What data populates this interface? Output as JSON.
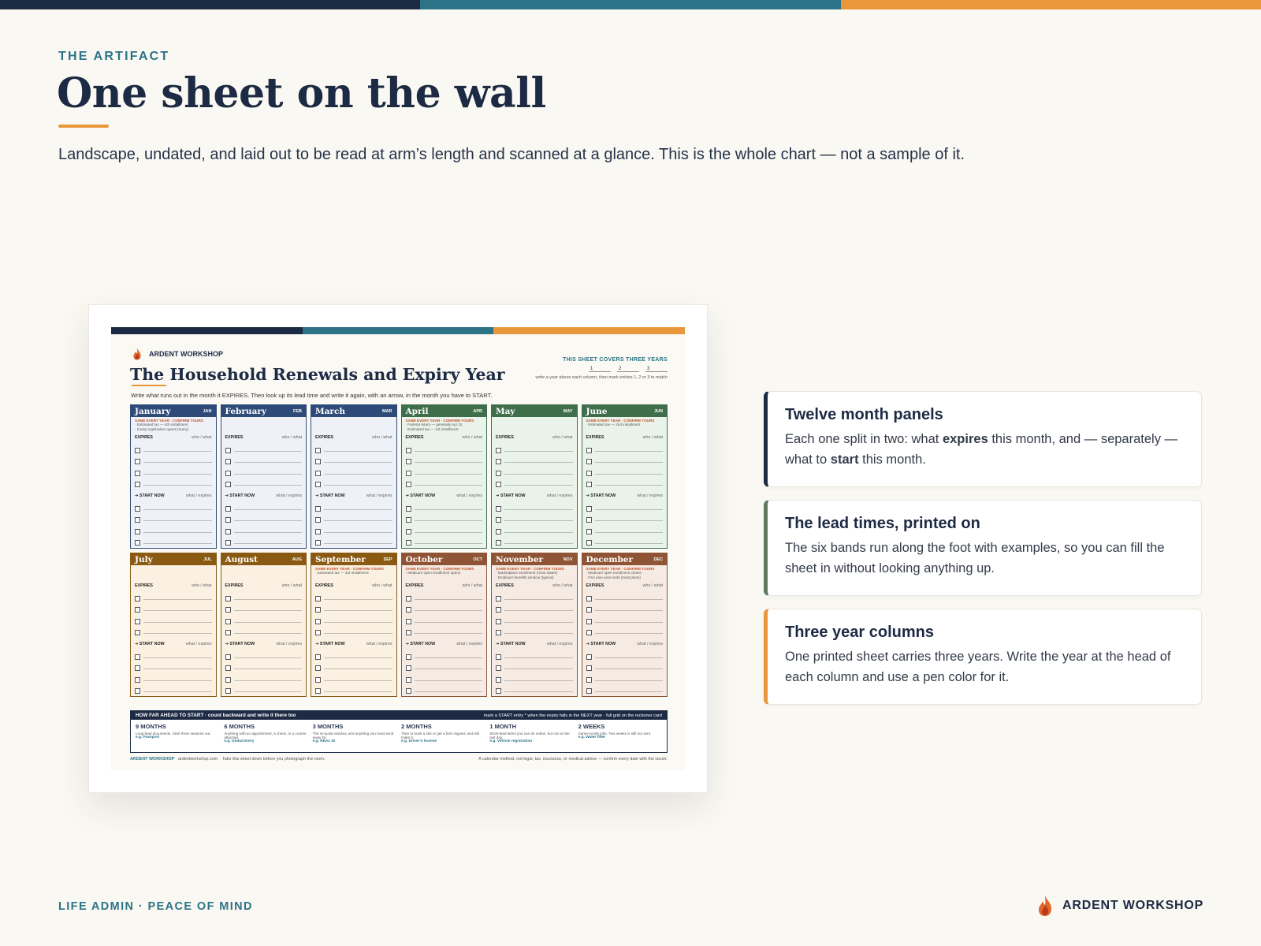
{
  "colors": {
    "navy": "#1d2a44",
    "teal": "#2c7388",
    "orange": "#e9973a",
    "green": "#5d7a5d"
  },
  "header": {
    "eyebrow": "THE ARTIFACT",
    "title": "One sheet on the wall",
    "lede": "Landscape, undated, and laid out to be read at arm’s length and scanned at a glance. This is the whole chart — not a sample of it."
  },
  "sheet": {
    "brand": "ARDENT WORKSHOP",
    "title": "The Household Renewals and Expiry Year",
    "instruction": "Write what runs out in the month it EXPIRES. Then look up its lead time and write it again, with an arrow, in the month you have to START.",
    "covers_label": "THIS SHEET COVERS THREE YEARS",
    "years": [
      "1",
      "2",
      "3"
    ],
    "covers_note": "write a year above each column, then mark entries 1, 2 or 3 to match",
    "expires_label": "EXPIRES",
    "expires_hint": "who / what",
    "start_label": "➔ START NOW",
    "start_hint": "what / expires",
    "same_label": "SAME EVERY YEAR · CONFIRM YOURS",
    "months": [
      {
        "name": "January",
        "abbr": "JAN",
        "same": [
          "· Estimated tax — 4th installment",
          "· Camp registration opens (many)"
        ]
      },
      {
        "name": "February",
        "abbr": "FEB",
        "same": []
      },
      {
        "name": "March",
        "abbr": "MAR",
        "same": []
      },
      {
        "name": "April",
        "abbr": "APR",
        "same": [
          "· Federal return — generally Apr 15",
          "· Estimated tax — 1st installment"
        ]
      },
      {
        "name": "May",
        "abbr": "MAY",
        "same": []
      },
      {
        "name": "June",
        "abbr": "JUN",
        "same": [
          "· Estimated tax — 2nd installment"
        ]
      },
      {
        "name": "July",
        "abbr": "JUL",
        "same": []
      },
      {
        "name": "August",
        "abbr": "AUG",
        "same": []
      },
      {
        "name": "September",
        "abbr": "SEP",
        "same": [
          "· Estimated tax — 3rd installment"
        ]
      },
      {
        "name": "October",
        "abbr": "OCT",
        "same": [
          "· Medicare open enrollment opens"
        ]
      },
      {
        "name": "November",
        "abbr": "NOV",
        "same": [
          "· Marketplace enrollment (most states)",
          "· Employer benefits window (typical)"
        ]
      },
      {
        "name": "December",
        "abbr": "DEC",
        "same": [
          "· Medicare open enrollment closes",
          "· FSA plan year ends (most plans)"
        ]
      }
    ],
    "lead": {
      "header_left": "HOW FAR AHEAD TO START · count backward and write it there too",
      "header_right": "mark a START entry * when the expiry falls in the NEXT year · full grid on the reckoner card",
      "bands": [
        {
          "title": "9 MONTHS",
          "desc": "Long-lead documents. Start three seasons out.",
          "example": "e.g. Passport"
        },
        {
          "title": "6 MONTHS",
          "desc": "Anything with an appointment, a check, or a course attached.",
          "example": "e.g. Global Entry"
        },
        {
          "title": "3 MONTHS",
          "desc": "The re-quote window, and anything you must send away for.",
          "example": "e.g. REAL ID"
        },
        {
          "title": "2 MONTHS",
          "desc": "Time to book a slot or get a form signed, and still make it.",
          "example": "e.g. Driver’s license"
        },
        {
          "title": "1 MONTH",
          "desc": "Short-lead items you can do online, but not on the last day.",
          "example": "e.g. Vehicle registration"
        },
        {
          "title": "2 WEEKS",
          "desc": "Same-month jobs. Two weeks is still not zero.",
          "example": "e.g. Water filter"
        }
      ]
    },
    "foot_left_brand": "ARDENT WORKSHOP",
    "foot_left_url": "· ardentworkshop.com",
    "foot_left_note": "Take this sheet down before you photograph the room.",
    "foot_right": "A calendar method, not legal, tax, insurance, or medical advice — confirm every date with the issuer."
  },
  "cards": [
    {
      "title": "Twelve month panels",
      "html": "Each one split in two: what <b>expires</b> this month, and — separately — what to <b>start</b> this month.",
      "accent": "#1d2a44"
    },
    {
      "title": "The lead times, printed on",
      "html": "The six bands run along the foot with examples, so you can fill the sheet in without looking anything up.",
      "accent": "#5d7a5d"
    },
    {
      "title": "Three year columns",
      "html": "One printed sheet carries three years. Write the year at the head of each column and use a pen color for it.",
      "accent": "#e9973a"
    }
  ],
  "footer": {
    "left": "LIFE ADMIN · PEACE OF MIND",
    "brand": "ARDENT WORKSHOP"
  }
}
